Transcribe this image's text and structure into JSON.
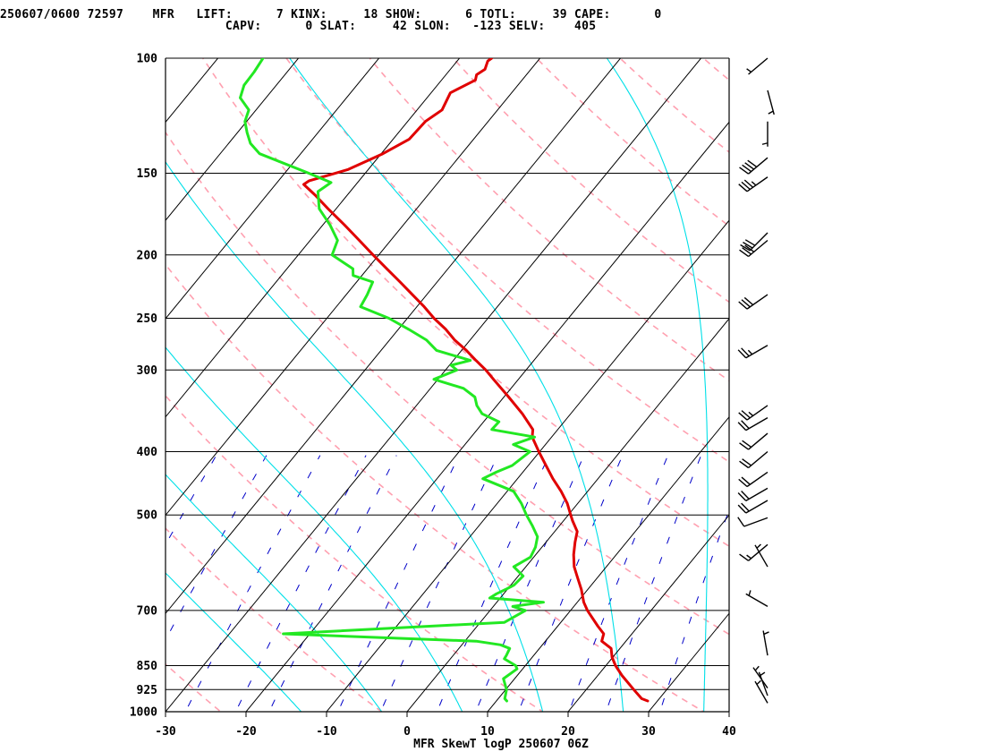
{
  "header": {
    "line1": "250607/0600 72597    MFR   LIFT:      7 KINX:     18 SHOW:      6 TOTL:     39 CAPE:      0",
    "line2": "                               CAPV:      0 SLAT:     42 SLON:   -123 SELV:    405"
  },
  "colors": {
    "temperature": "#e00000",
    "dewpoint": "#22e822",
    "dry_adiabat": "#ffa0b0",
    "moist_adiabat": "#00e0e8",
    "mixing_ratio": "#0000c8",
    "isotherm": "#000000",
    "isobar": "#000000",
    "wind_barb": "#000000"
  },
  "chart_data": {
    "type": "line",
    "title": "",
    "caption": "MFR SkewT logP 250607 06Z",
    "xlabel": "",
    "ylabel": "",
    "x_unit": "deg C",
    "y_unit": "hPa",
    "xlim": [
      -30,
      40
    ],
    "ylim": [
      1000,
      100
    ],
    "y_scale": "log",
    "x_ticks": [
      -30,
      -20,
      -10,
      0,
      10,
      20,
      30,
      40
    ],
    "x_tick_labels": [
      "-30",
      "-20",
      "-10",
      "0",
      "10",
      "20",
      "30",
      "40"
    ],
    "y_ticks": [
      1000,
      925,
      850,
      700,
      500,
      400,
      300,
      250,
      200,
      150,
      100
    ],
    "y_tick_labels": [
      "1000",
      "925",
      "850",
      "700",
      "500",
      "400",
      "300",
      "250",
      "200",
      "150",
      "100"
    ],
    "isotherms": [
      -140,
      -130,
      -120,
      -110,
      -100,
      -90,
      -80,
      -70,
      -60,
      -50,
      -40,
      -30,
      -20,
      -10,
      0,
      10,
      20,
      30,
      40
    ],
    "dry_adiabats_thetaK": [
      250,
      270,
      290,
      310,
      330,
      350,
      370,
      390,
      410,
      430,
      450,
      470
    ],
    "moist_adiabats_thetaK": [
      260,
      270,
      280,
      290,
      300,
      310,
      320,
      330
    ],
    "mixing_ratio_lines_gkg": [
      0.1,
      0.2,
      0.4,
      0.7,
      1,
      2,
      3,
      5,
      7,
      10,
      15,
      20,
      30
    ],
    "series": [
      {
        "role": "temperature",
        "p": [
          963,
          955,
          925,
          880,
          850,
          825,
          800,
          780,
          760,
          740,
          700,
          680,
          650,
          620,
          600,
          575,
          550,
          530,
          510,
          500,
          480,
          460,
          440,
          420,
          400,
          380,
          370,
          350,
          330,
          310,
          300,
          290,
          280,
          270,
          260,
          250,
          240,
          230,
          220,
          210,
          200,
          190,
          180,
          170,
          162,
          156,
          154,
          148,
          140,
          133,
          125,
          120,
          113,
          108,
          106,
          104,
          101,
          100
        ],
        "t": [
          28.8,
          27.8,
          25.9,
          23.0,
          21.2,
          19.9,
          18.9,
          17.0,
          16.5,
          15.0,
          12.1,
          10.8,
          9.2,
          7.3,
          6.0,
          4.7,
          3.6,
          2.8,
          1.1,
          0.3,
          -1.3,
          -3.3,
          -5.6,
          -7.8,
          -10.1,
          -12.4,
          -13.1,
          -16.0,
          -19.4,
          -23.1,
          -25.0,
          -27.2,
          -29.4,
          -31.9,
          -34.1,
          -36.7,
          -39.1,
          -41.8,
          -44.6,
          -47.6,
          -50.7,
          -53.9,
          -57.3,
          -61.0,
          -64.0,
          -66.5,
          -66.2,
          -62.5,
          -59.8,
          -58.0,
          -57.8,
          -56.9,
          -57.6,
          -55.8,
          -56.2,
          -55.7,
          -56.2,
          -56.0
        ]
      },
      {
        "role": "dewpoint",
        "p": [
          963,
          955,
          925,
          890,
          860,
          850,
          830,
          820,
          800,
          790,
          780,
          760,
          730,
          700,
          690,
          680,
          670,
          660,
          650,
          640,
          620,
          600,
          580,
          560,
          540,
          520,
          500,
          480,
          460,
          440,
          430,
          420,
          400,
          390,
          380,
          370,
          360,
          350,
          340,
          330,
          320,
          310,
          300,
          295,
          290,
          280,
          270,
          260,
          250,
          240,
          230,
          220,
          215,
          210,
          200,
          190,
          180,
          170,
          160,
          155,
          150,
          140,
          135,
          130,
          125,
          120,
          115,
          110,
          105,
          100
        ],
        "t": [
          11.3,
          10.8,
          10.1,
          8.6,
          9.3,
          8.8,
          6.7,
          6.6,
          6.3,
          4.8,
          1.4,
          -23.3,
          3.0,
          4.4,
          2.4,
          5.8,
          -1.3,
          -0.9,
          -0.2,
          0.4,
          0.6,
          -1.5,
          -0.4,
          -0.8,
          -1.6,
          -3.3,
          -5.2,
          -7.0,
          -9.2,
          -14.3,
          -13.3,
          -12.0,
          -11.2,
          -14.0,
          -12.1,
          -18.2,
          -18.1,
          -21.0,
          -22.5,
          -23.6,
          -25.9,
          -30.5,
          -28.6,
          -29.8,
          -27.9,
          -33.1,
          -35.4,
          -38.7,
          -42.3,
          -47.0,
          -47.4,
          -48.0,
          -51.1,
          -51.8,
          -55.8,
          -56.6,
          -59.1,
          -62.1,
          -64.0,
          -63.3,
          -67.0,
          -75.1,
          -77.3,
          -78.8,
          -80.2,
          -80.9,
          -83.2,
          -84.0,
          -84.1,
          -84.4
        ]
      }
    ],
    "wind_barbs": [
      {
        "p": 970,
        "dir": 330,
        "spd": 5
      },
      {
        "p": 945,
        "dir": 340,
        "spd": 5
      },
      {
        "p": 920,
        "dir": 325,
        "spd": 5
      },
      {
        "p": 820,
        "dir": 350,
        "spd": 5
      },
      {
        "p": 690,
        "dir": 300,
        "spd": 5
      },
      {
        "p": 600,
        "dir": 330,
        "spd": 5
      },
      {
        "p": 555,
        "dir": 230,
        "spd": 15
      },
      {
        "p": 505,
        "dir": 250,
        "spd": 10
      },
      {
        "p": 475,
        "dir": 240,
        "spd": 20
      },
      {
        "p": 455,
        "dir": 240,
        "spd": 20
      },
      {
        "p": 430,
        "dir": 235,
        "spd": 20
      },
      {
        "p": 400,
        "dir": 230,
        "spd": 20
      },
      {
        "p": 375,
        "dir": 230,
        "spd": 20
      },
      {
        "p": 355,
        "dir": 240,
        "spd": 20
      },
      {
        "p": 340,
        "dir": 235,
        "spd": 25
      },
      {
        "p": 275,
        "dir": 240,
        "spd": 25
      },
      {
        "p": 230,
        "dir": 235,
        "spd": 30
      },
      {
        "p": 190,
        "dir": 230,
        "spd": 30
      },
      {
        "p": 185,
        "dir": 225,
        "spd": 30
      },
      {
        "p": 152,
        "dir": 235,
        "spd": 35
      },
      {
        "p": 142,
        "dir": 230,
        "spd": 40
      },
      {
        "p": 125,
        "dir": 180,
        "spd": 5
      },
      {
        "p": 112,
        "dir": 165,
        "spd": 5
      },
      {
        "p": 100,
        "dir": 230,
        "spd": 5
      }
    ]
  }
}
